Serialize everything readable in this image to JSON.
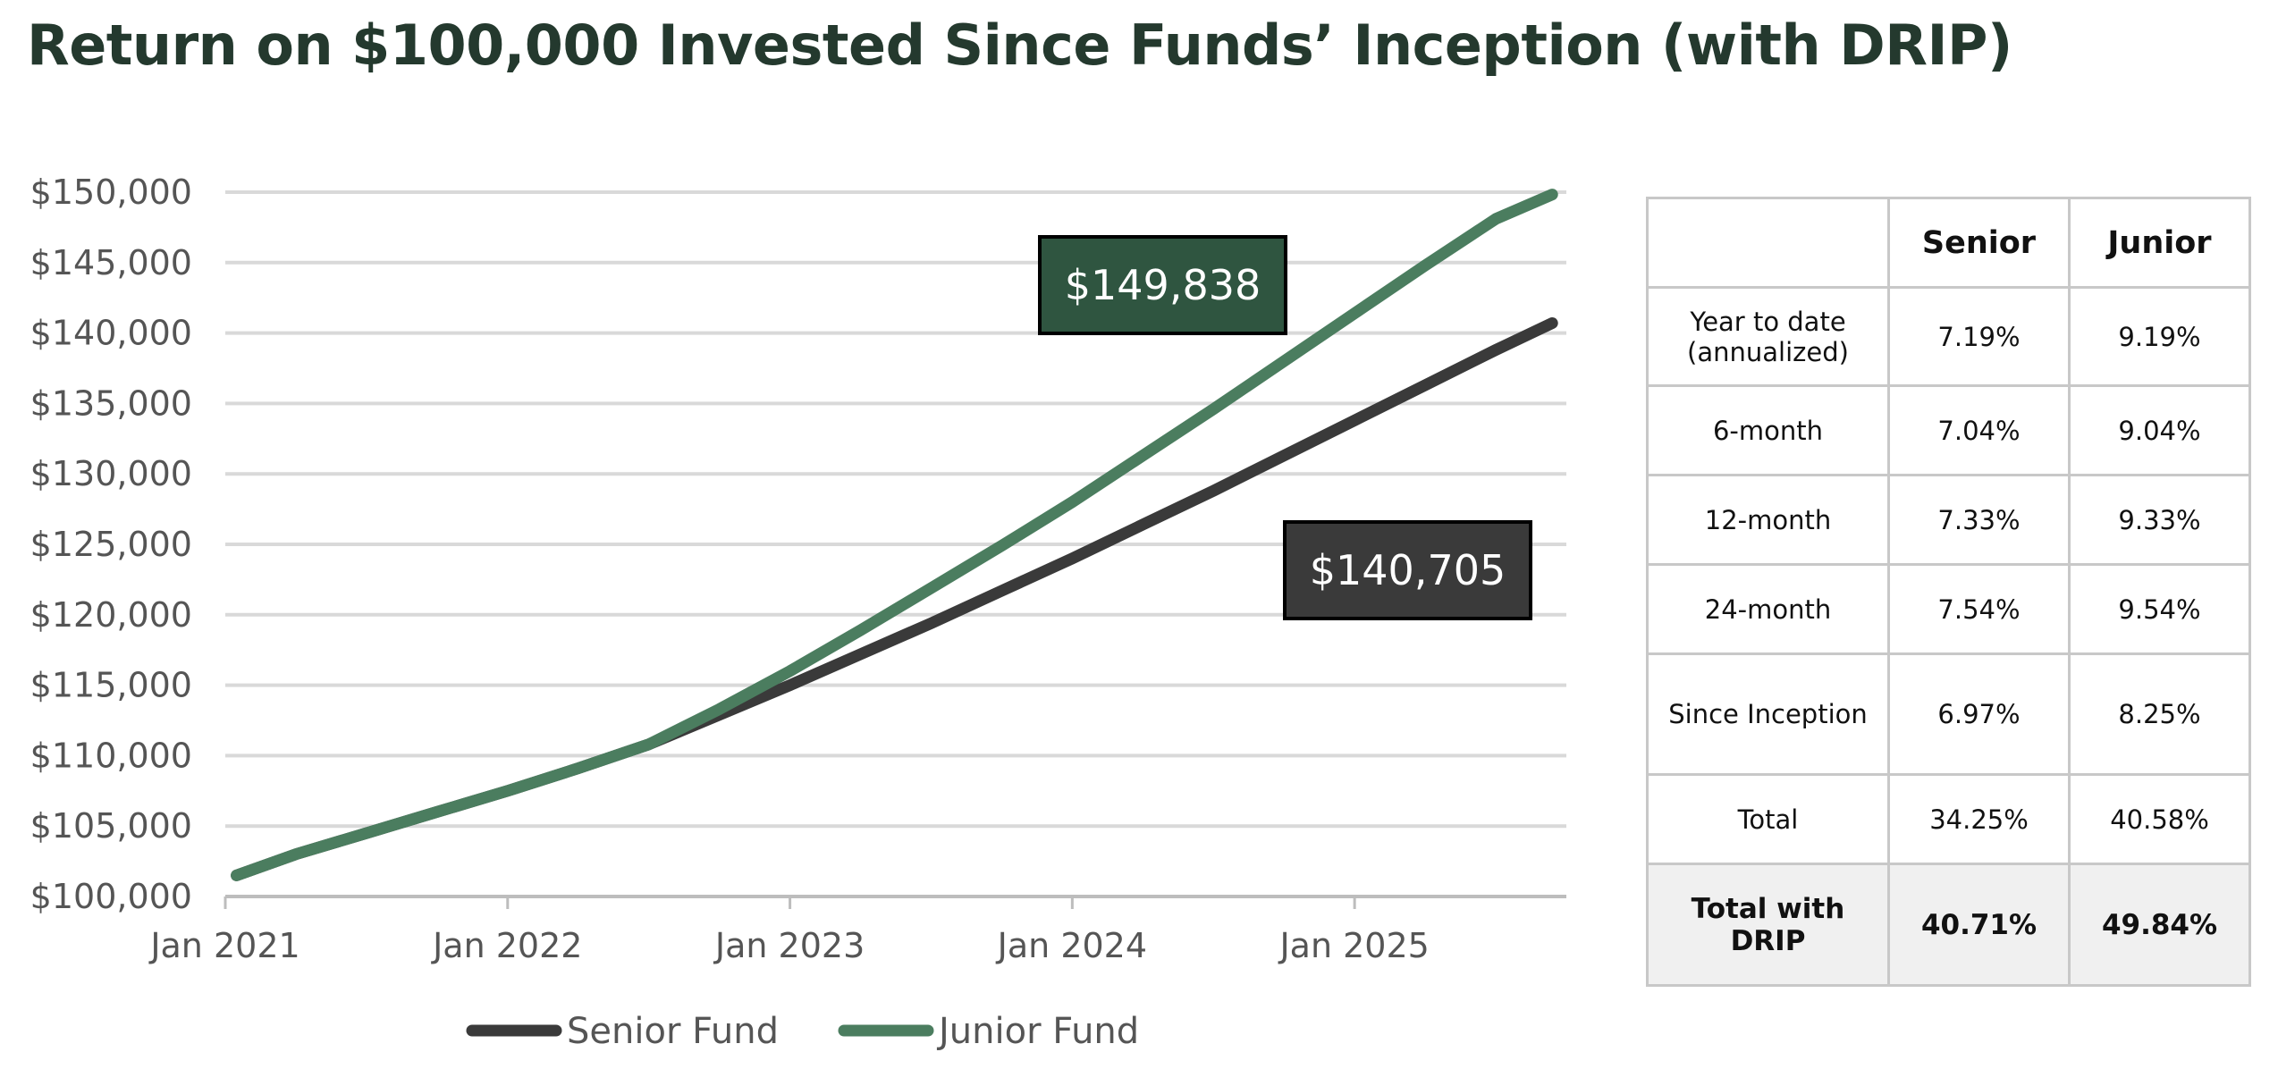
{
  "title": "Return on $100,000 Invested Since Funds’ Inception (with DRIP)",
  "chart_data": {
    "type": "line",
    "title": "Return on $100,000 Invested Since Funds’ Inception (with DRIP)",
    "xlabel": "",
    "ylabel": "",
    "x_unit": "year (decimal)",
    "xlim": [
      2021.0,
      2025.75
    ],
    "ylim": [
      100000,
      150000
    ],
    "grid": true,
    "legend_position": "bottom-center",
    "x_ticks": [
      {
        "value": 2021,
        "label": "Jan 2021"
      },
      {
        "value": 2022,
        "label": "Jan 2022"
      },
      {
        "value": 2023,
        "label": "Jan 2023"
      },
      {
        "value": 2024,
        "label": "Jan 2024"
      },
      {
        "value": 2025,
        "label": "Jan 2025"
      }
    ],
    "y_ticks": [
      {
        "value": 150000,
        "label": "$150,000"
      },
      {
        "value": 145000,
        "label": "$145,000"
      },
      {
        "value": 140000,
        "label": "$140,000"
      },
      {
        "value": 135000,
        "label": "$135,000"
      },
      {
        "value": 130000,
        "label": "$130,000"
      },
      {
        "value": 125000,
        "label": "$125,000"
      },
      {
        "value": 120000,
        "label": "$120,000"
      },
      {
        "value": 115000,
        "label": "$115,000"
      },
      {
        "value": 110000,
        "label": "$110,000"
      },
      {
        "value": 105000,
        "label": "$105,000"
      },
      {
        "value": 100000,
        "label": "$100,000"
      }
    ],
    "series": [
      {
        "name": "Senior Fund",
        "color": "#3a3a3a",
        "x": [
          2021.04,
          2021.25,
          2021.5,
          2021.75,
          2022.0,
          2022.25,
          2022.5,
          2022.75,
          2023.0,
          2023.25,
          2023.5,
          2023.75,
          2024.0,
          2024.25,
          2024.5,
          2024.75,
          2025.0,
          2025.25,
          2025.5,
          2025.7
        ],
        "values": [
          101500,
          103000,
          104500,
          106000,
          107500,
          109100,
          110800,
          112900,
          115000,
          117200,
          119400,
          121700,
          124000,
          126400,
          128800,
          131300,
          133800,
          136300,
          138800,
          140705
        ]
      },
      {
        "name": "Junior Fund",
        "color": "#4b7d5f",
        "x": [
          2021.04,
          2021.25,
          2021.5,
          2021.75,
          2022.0,
          2022.25,
          2022.5,
          2022.75,
          2023.0,
          2023.25,
          2023.5,
          2023.75,
          2024.0,
          2024.25,
          2024.5,
          2024.75,
          2025.0,
          2025.25,
          2025.5,
          2025.7
        ],
        "values": [
          101500,
          103000,
          104500,
          106000,
          107500,
          109100,
          110800,
          113300,
          116000,
          118900,
          121900,
          124900,
          128000,
          131300,
          134600,
          138000,
          141400,
          144800,
          148100,
          149838
        ]
      }
    ],
    "annotations": [
      {
        "text": "$149,838",
        "series": "Junior Fund",
        "fill": "#2f5540"
      },
      {
        "text": "$140,705",
        "series": "Senior Fund",
        "fill": "#3a3a3a"
      }
    ]
  },
  "table": {
    "header": [
      "",
      "Senior",
      "Junior"
    ],
    "rows": [
      {
        "label": "Year to date (annualized)",
        "senior": "7.19%",
        "junior": "9.19%",
        "bold": false
      },
      {
        "label": "6-month",
        "senior": "7.04%",
        "junior": "9.04%",
        "bold": false
      },
      {
        "label": "12-month",
        "senior": "7.33%",
        "junior": "9.33%",
        "bold": false
      },
      {
        "label": "24-month",
        "senior": "7.54%",
        "junior": "9.54%",
        "bold": false
      },
      {
        "label": "Since Inception",
        "senior": "6.97%",
        "junior": "8.25%",
        "bold": false
      },
      {
        "label": "Total",
        "senior": "34.25%",
        "junior": "40.58%",
        "bold": false
      },
      {
        "label": "Total with DRIP",
        "senior": "40.71%",
        "junior": "49.84%",
        "bold": true
      }
    ]
  }
}
